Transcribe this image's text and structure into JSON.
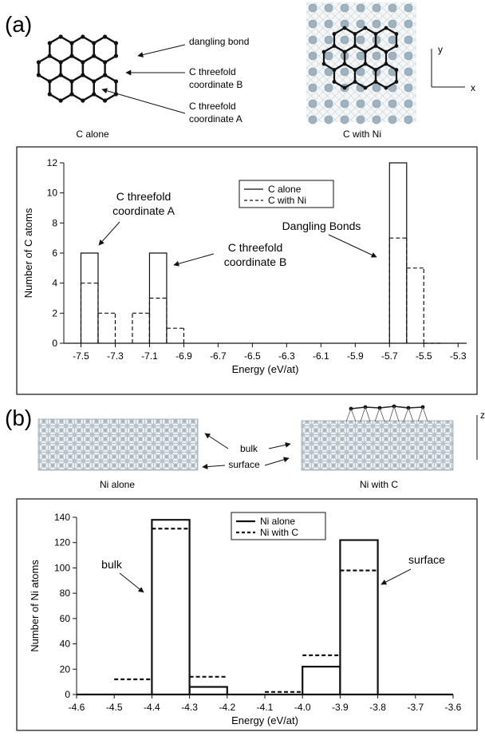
{
  "panel_a": {
    "label": "(a)",
    "schematic": {
      "caption_left": "C alone",
      "caption_right": "C with Ni",
      "labels": {
        "dangling": "dangling bond",
        "coord_b_line1": "C threefold",
        "coord_b_line2": "coordinate B",
        "coord_a_line1": "C threefold",
        "coord_a_line2": "coordinate A"
      },
      "axes": {
        "y": "y",
        "x": "x"
      }
    }
  },
  "panel_b": {
    "label": "(b)",
    "schematic": {
      "caption_left": "Ni alone",
      "caption_right": "Ni with C",
      "labels": {
        "bulk": "bulk",
        "surface": "surface"
      },
      "axes": {
        "z": "z"
      }
    }
  },
  "chart_data": [
    {
      "type": "histogram",
      "xlabel": "Energy (eV/at)",
      "ylabel": "Number of C atoms",
      "xlim": [
        -7.6,
        -5.25
      ],
      "ylim": [
        0,
        12
      ],
      "xticks": [
        "-7.5",
        "-7.3",
        "-7.1",
        "-6.9",
        "-6.7",
        "-6.5",
        "-6.3",
        "-6.1",
        "-5.9",
        "-5.7",
        "-5.5",
        "-5.3"
      ],
      "yticks": [
        "0",
        "2",
        "4",
        "6",
        "8",
        "10",
        "12"
      ],
      "legend": {
        "position": "top-center"
      },
      "series": [
        {
          "name": "C alone",
          "style": "solid",
          "bins": [
            {
              "x0": -7.5,
              "x1": -7.4,
              "value": 6
            },
            {
              "x0": -7.1,
              "x1": -7.0,
              "value": 6
            },
            {
              "x0": -5.7,
              "x1": -5.6,
              "value": 12
            }
          ]
        },
        {
          "name": "C with Ni",
          "style": "dashed",
          "bins": [
            {
              "x0": -7.5,
              "x1": -7.4,
              "value": 4
            },
            {
              "x0": -7.4,
              "x1": -7.3,
              "value": 2
            },
            {
              "x0": -7.2,
              "x1": -7.1,
              "value": 2
            },
            {
              "x0": -7.1,
              "x1": -7.0,
              "value": 3
            },
            {
              "x0": -7.0,
              "x1": -6.9,
              "value": 1
            },
            {
              "x0": -5.7,
              "x1": -5.6,
              "value": 7
            },
            {
              "x0": -5.6,
              "x1": -5.5,
              "value": 5
            },
            {
              "x0": -5.5,
              "x1": -5.4,
              "value": 0
            }
          ]
        }
      ],
      "annotations": [
        {
          "id": "a",
          "text": [
            "C threefold",
            "coordinate A"
          ]
        },
        {
          "id": "b",
          "text": [
            "C threefold",
            "coordinate B"
          ]
        },
        {
          "id": "d",
          "text": [
            "Dangling Bonds"
          ]
        }
      ]
    },
    {
      "type": "histogram",
      "xlabel": "Energy (eV/at)",
      "ylabel": "Number of Ni atoms",
      "xlim": [
        -4.6,
        -3.6
      ],
      "ylim": [
        0,
        140
      ],
      "xticks": [
        "-4.6",
        "-4.5",
        "-4.4",
        "-4.3",
        "-4.2",
        "-4.1",
        "-4.0",
        "-3.9",
        "-3.8",
        "-3.7",
        "-3.6"
      ],
      "yticks": [
        "0",
        "20",
        "40",
        "60",
        "80",
        "100",
        "120",
        "140"
      ],
      "legend": {
        "position": "top-center"
      },
      "series": [
        {
          "name": "Ni alone",
          "style": "solid",
          "bins": [
            {
              "x0": -4.6,
              "x1": -4.5,
              "value": 0
            },
            {
              "x0": -4.5,
              "x1": -4.4,
              "value": 0
            },
            {
              "x0": -4.4,
              "x1": -4.3,
              "value": 138
            },
            {
              "x0": -4.3,
              "x1": -4.2,
              "value": 6
            },
            {
              "x0": -4.2,
              "x1": -4.1,
              "value": 0
            },
            {
              "x0": -4.1,
              "x1": -4.0,
              "value": 0
            },
            {
              "x0": -4.0,
              "x1": -3.9,
              "value": 22
            },
            {
              "x0": -3.9,
              "x1": -3.8,
              "value": 122
            },
            {
              "x0": -3.8,
              "x1": -3.7,
              "value": 0
            },
            {
              "x0": -3.7,
              "x1": -3.6,
              "value": 0
            }
          ]
        },
        {
          "name": "Ni with C",
          "style": "dashed",
          "bins": [
            {
              "x0": -4.5,
              "x1": -4.4,
              "value": 12
            },
            {
              "x0": -4.4,
              "x1": -4.3,
              "value": 131
            },
            {
              "x0": -4.3,
              "x1": -4.2,
              "value": 14
            },
            {
              "x0": -4.1,
              "x1": -4.0,
              "value": 2
            },
            {
              "x0": -4.0,
              "x1": -3.9,
              "value": 31
            },
            {
              "x0": -3.9,
              "x1": -3.8,
              "value": 98
            }
          ]
        }
      ],
      "annotations": [
        {
          "id": "bulk",
          "text": [
            "bulk"
          ]
        },
        {
          "id": "surface",
          "text": [
            "surface"
          ]
        }
      ]
    }
  ]
}
